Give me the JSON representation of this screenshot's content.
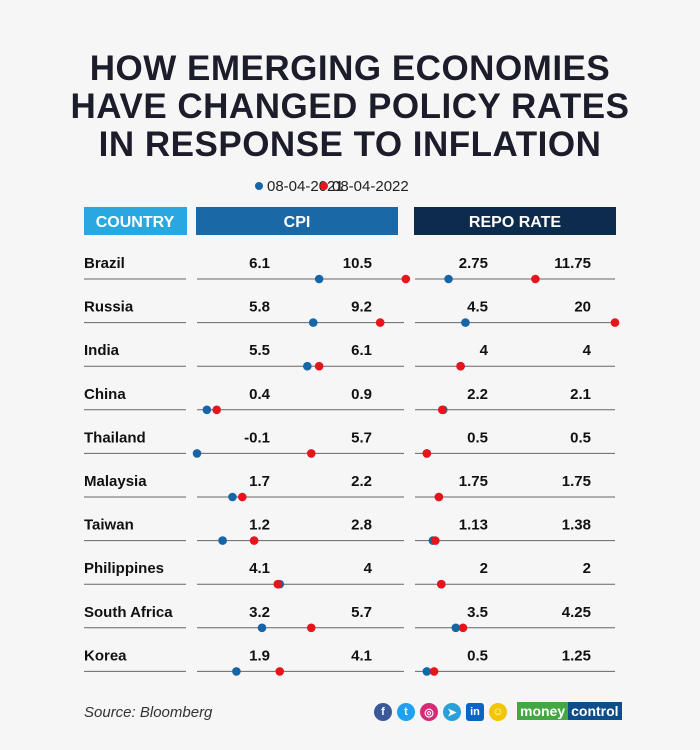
{
  "title": "HOW EMERGING ECONOMIES HAVE CHANGED POLICY RATES IN RESPONSE TO INFLATION",
  "source": "Source: Bloomberg",
  "brand": {
    "part1": "money",
    "part2": "control"
  },
  "social_icons": [
    "facebook-icon",
    "twitter-icon",
    "instagram-icon",
    "telegram-icon",
    "linkedin-icon",
    "snapchat-icon"
  ],
  "chart_data": {
    "type": "dot-plot",
    "title": "HOW EMERGING ECONOMIES HAVE CHANGED POLICY RATES IN RESPONSE TO INFLATION",
    "columns": {
      "country": "COUNTRY",
      "cpi": "CPI",
      "repo": "REPO RATE"
    },
    "legend": [
      {
        "name": "08-04-2021",
        "color": "#1565a8"
      },
      {
        "name": "08-04-2022",
        "color": "#e8141b"
      }
    ],
    "legend_position": "top",
    "categories": [
      "Brazil",
      "Russia",
      "India",
      "China",
      "Thailand",
      "Malaysia",
      "Taiwan",
      "Philippines",
      "South Africa",
      "Korea"
    ],
    "cpi": {
      "series": [
        {
          "name": "08-04-2021",
          "values": [
            6.1,
            5.8,
            5.5,
            0.4,
            -0.1,
            1.7,
            1.2,
            4.1,
            3.2,
            1.9
          ]
        },
        {
          "name": "08-04-2022",
          "values": [
            10.5,
            9.2,
            6.1,
            0.9,
            5.7,
            2.2,
            2.8,
            4,
            5.7,
            4.1
          ]
        }
      ]
    },
    "repo": {
      "series": [
        {
          "name": "08-04-2021",
          "values": [
            "2.75",
            "4.5",
            "4",
            "2.2",
            "0.5",
            "1.75",
            "1.13",
            "2",
            "3.5",
            "0.5"
          ]
        },
        {
          "name": "08-04-2022",
          "values": [
            "11.75",
            "20",
            "4",
            "2.1",
            "0.5",
            "1.75",
            "1.38",
            "2",
            "4.25",
            "1.25"
          ]
        }
      ]
    },
    "colors": {
      "country_header": "#29a8e0",
      "cpi_header": "#1b68a6",
      "repo_header": "#0d2b4c"
    }
  }
}
